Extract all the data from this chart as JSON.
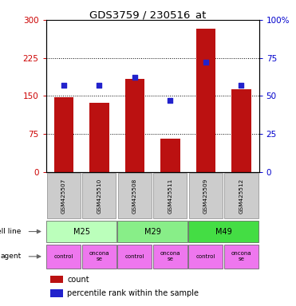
{
  "title": "GDS3759 / 230516_at",
  "samples": [
    "GSM425507",
    "GSM425510",
    "GSM425508",
    "GSM425511",
    "GSM425509",
    "GSM425512"
  ],
  "counts": [
    148,
    137,
    183,
    65,
    283,
    163
  ],
  "percentile_ranks": [
    57,
    57,
    62,
    47,
    72,
    57
  ],
  "cell_lines": [
    {
      "label": "M25",
      "span": [
        0,
        2
      ],
      "color": "#bbffbb"
    },
    {
      "label": "M29",
      "span": [
        2,
        4
      ],
      "color": "#88ee88"
    },
    {
      "label": "M49",
      "span": [
        4,
        6
      ],
      "color": "#44dd44"
    }
  ],
  "agents": [
    {
      "label": "control",
      "span": [
        0,
        1
      ],
      "color": "#ee77ee"
    },
    {
      "label": "oncona\nse",
      "span": [
        1,
        2
      ],
      "color": "#ee77ee"
    },
    {
      "label": "control",
      "span": [
        2,
        3
      ],
      "color": "#ee77ee"
    },
    {
      "label": "oncona\nse",
      "span": [
        3,
        4
      ],
      "color": "#ee77ee"
    },
    {
      "label": "control",
      "span": [
        4,
        5
      ],
      "color": "#ee77ee"
    },
    {
      "label": "oncona\nse",
      "span": [
        5,
        6
      ],
      "color": "#ee77ee"
    }
  ],
  "bar_color": "#bb1111",
  "dot_color": "#2222cc",
  "left_axis_color": "#cc0000",
  "right_axis_color": "#0000cc",
  "ylim_left": [
    0,
    300
  ],
  "ylim_right": [
    0,
    100
  ],
  "yticks_left": [
    0,
    75,
    150,
    225,
    300
  ],
  "yticks_right": [
    0,
    25,
    50,
    75,
    100
  ],
  "ytick_labels_right": [
    "0",
    "25",
    "50",
    "75",
    "100%"
  ],
  "legend_count_label": "count",
  "legend_percentile_label": "percentile rank within the sample",
  "cell_line_label": "cell line",
  "agent_label": "agent",
  "gridline_values": [
    75,
    150,
    225
  ]
}
